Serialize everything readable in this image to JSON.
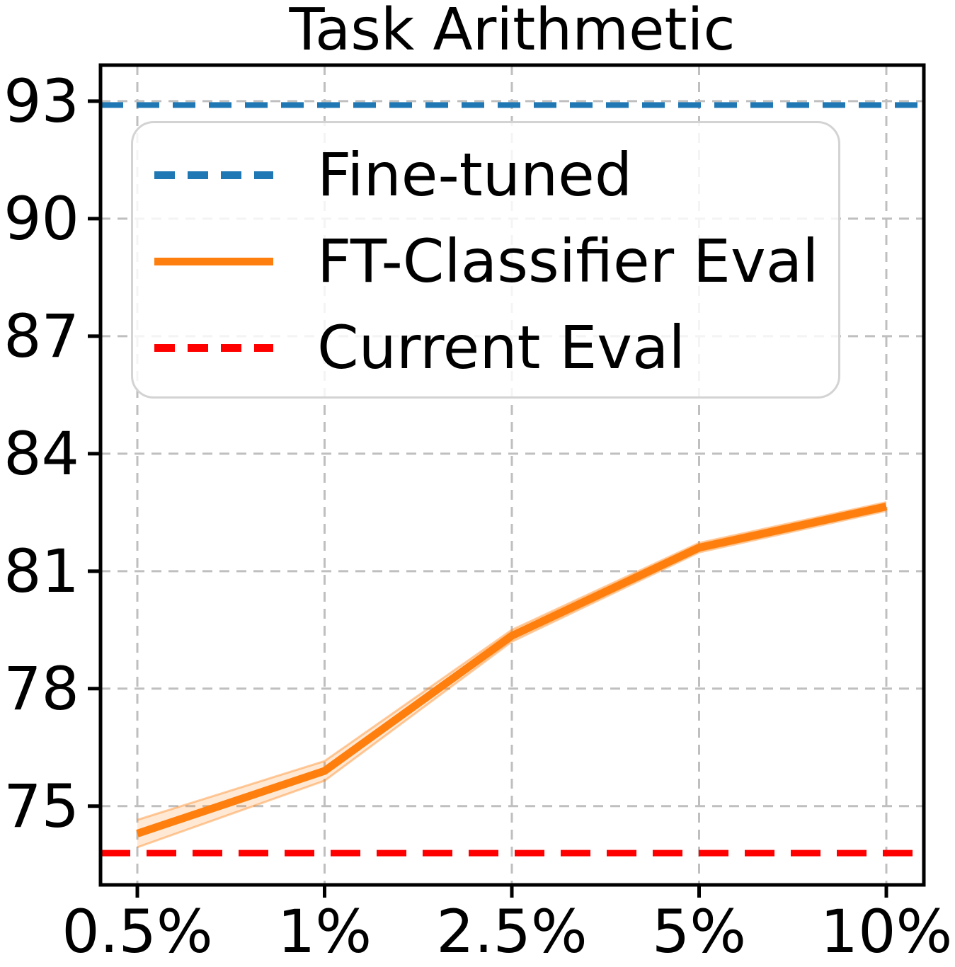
{
  "title": "Task Arithmetic",
  "legend": {
    "items": [
      {
        "label": "Fine-tuned",
        "color": "#1f77b4",
        "style": "dashed"
      },
      {
        "label": "FT-Classifier Eval",
        "color": "#ff7f0e",
        "style": "solid"
      },
      {
        "label": "Current Eval",
        "color": "#ff0000",
        "style": "dashed"
      }
    ]
  },
  "chart_data": {
    "type": "line",
    "title": "Task Arithmetic",
    "x_tick_labels": [
      "0.5%",
      "1%",
      "2.5%",
      "5%",
      "10%"
    ],
    "y_tick_labels": [
      "93",
      "90",
      "87",
      "84",
      "81",
      "78",
      "75"
    ],
    "y_ticks": [
      93,
      90,
      87,
      84,
      81,
      78,
      75
    ],
    "ylim": [
      72.99,
      93.92
    ],
    "grid": true,
    "legend_position": "upper left",
    "colors": {
      "grid": "#bfbfbf",
      "spine": "#000000",
      "band": "rgba(255,127,14,0.18)",
      "band_edge": "rgba(255,127,14,0.4)"
    },
    "series": [
      {
        "name": "Fine-tuned",
        "kind": "hline",
        "value": 92.9,
        "color": "#1f77b4",
        "linestyle": "dashed"
      },
      {
        "name": "FT-Classifier Eval",
        "kind": "line",
        "x": [
          "0.5%",
          "1%",
          "2.5%",
          "5%",
          "10%"
        ],
        "values": [
          74.3,
          75.9,
          79.35,
          81.6,
          82.65
        ],
        "band_upper": [
          74.65,
          76.15,
          79.5,
          81.72,
          82.76
        ],
        "band_lower": [
          73.95,
          75.65,
          79.2,
          81.48,
          82.54
        ],
        "color": "#ff7f0e",
        "linestyle": "solid"
      },
      {
        "name": "Current Eval",
        "kind": "hline",
        "value": 73.8,
        "color": "#ff0000",
        "linestyle": "dashed"
      }
    ]
  }
}
